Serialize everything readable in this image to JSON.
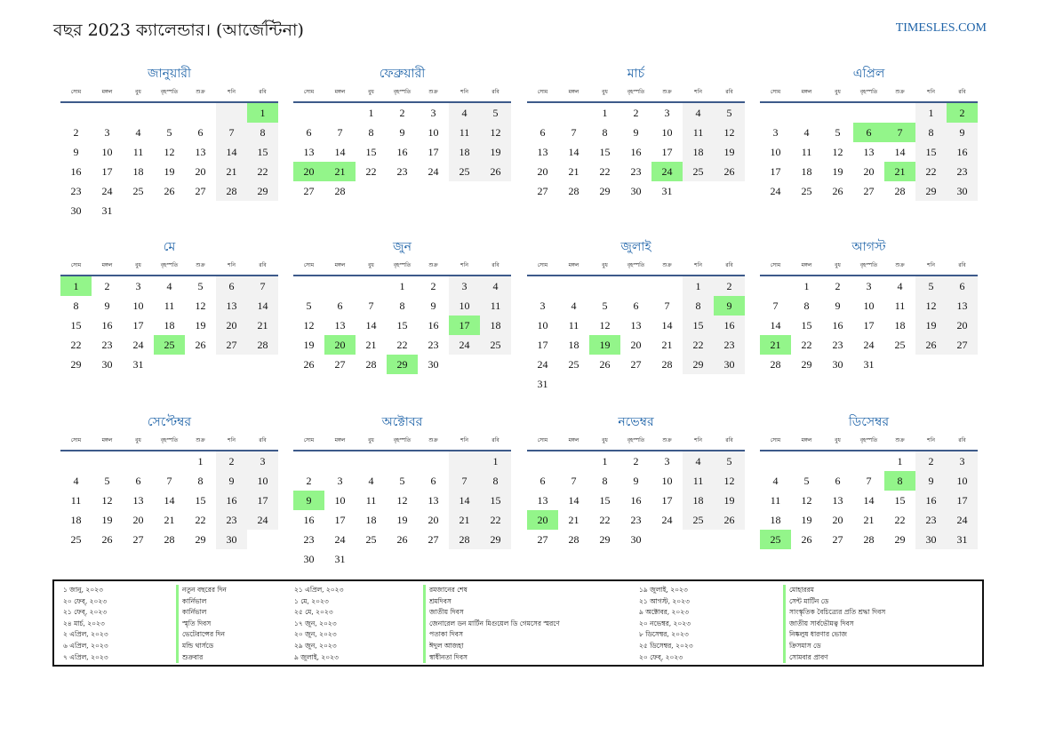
{
  "title": "বছর 2023 ক্যালেন্ডার। (আর্জেন্টিনা)",
  "site": "TIMESLES.COM",
  "weekdays": [
    "সোম",
    "মঙ্গল",
    "বুধ",
    "বৃহস্পতি",
    "শুক্র",
    "শনি",
    "রবি"
  ],
  "months": [
    {
      "name": "জানুয়ারী",
      "offset": 6,
      "days": 31,
      "holidays": [
        1
      ]
    },
    {
      "name": "ফেব্রুয়ারী",
      "offset": 2,
      "days": 28,
      "holidays": [
        20,
        21
      ]
    },
    {
      "name": "মার্চ",
      "offset": 2,
      "days": 31,
      "holidays": [
        24
      ]
    },
    {
      "name": "এপ্রিল",
      "offset": 5,
      "days": 30,
      "holidays": [
        2,
        6,
        7,
        21
      ]
    },
    {
      "name": "মে",
      "offset": 0,
      "days": 31,
      "holidays": [
        1,
        25
      ]
    },
    {
      "name": "জুন",
      "offset": 3,
      "days": 30,
      "holidays": [
        17,
        20,
        29
      ]
    },
    {
      "name": "জুলাই",
      "offset": 5,
      "days": 31,
      "holidays": [
        9,
        19
      ]
    },
    {
      "name": "আগস্ট",
      "offset": 1,
      "days": 31,
      "holidays": [
        21
      ]
    },
    {
      "name": "সেপ্টেম্বর",
      "offset": 4,
      "days": 30,
      "holidays": []
    },
    {
      "name": "অক্টোবর",
      "offset": 6,
      "days": 31,
      "holidays": [
        9
      ]
    },
    {
      "name": "নভেম্বর",
      "offset": 2,
      "days": 30,
      "holidays": [
        20
      ]
    },
    {
      "name": "ডিসেম্বর",
      "offset": 4,
      "days": 31,
      "holidays": [
        8,
        25
      ]
    }
  ],
  "legend": [
    [
      {
        "date": "১ জানু, ২০২৩",
        "name": "নতুন বছরের দিন"
      },
      {
        "date": "২০ ফেব্, ২০২৩",
        "name": "কার্নিভাল"
      },
      {
        "date": "২১ ফেব্, ২০২৩",
        "name": "কার্নিভাল"
      },
      {
        "date": "২৪ মার্চ, ২০২৩",
        "name": "স্মৃতি দিবস"
      },
      {
        "date": "২ এপ্রিল, ২০২৩",
        "name": "ভেটেরান্সের দিন"
      },
      {
        "date": "৬ এপ্রিল, ২০২৩",
        "name": "মন্ডি থার্সডে"
      },
      {
        "date": "৭ এপ্রিল, ২০২৩",
        "name": "শুক্রবার"
      }
    ],
    [
      {
        "date": "২১ এপ্রিল, ২০২৩",
        "name": "রমজানের শেষ"
      },
      {
        "date": "১ মে, ২০২৩",
        "name": "শ্রমদিবস"
      },
      {
        "date": "২৫ মে, ২০২৩",
        "name": "জাতীয় দিবস"
      },
      {
        "date": "১৭ জুন, ২০২৩",
        "name": "জেনারেল ডন মার্টিন মিগুয়েল ডি গেমসের স্মরণে"
      },
      {
        "date": "২০ জুন, ২০২৩",
        "name": "পতাকা দিবস"
      },
      {
        "date": "২৯ জুন, ২০২৩",
        "name": "ঈদুল আজহা"
      },
      {
        "date": "৯ জুলাই, ২০২৩",
        "name": "স্বাধীনতা দিবস"
      }
    ],
    [
      {
        "date": "১৯ জুলাই, ২০২৩",
        "name": "মোহাররম"
      },
      {
        "date": "২১ আগস্ট, ২০২৩",
        "name": "সেন্ট মার্টিন ডে"
      },
      {
        "date": "৯ অক্টোবর, ২০২৩",
        "name": "সাংস্কৃতিক বৈচিত্র্যের প্রতি শ্রদ্ধা দিবস"
      },
      {
        "date": "২০ নভেম্বর, ২০২৩",
        "name": "জাতীয় সার্বভৌমত্ব দিবস"
      },
      {
        "date": "৮ ডিসেম্বর, ২০২৩",
        "name": "নিষ্কলুষ ধারণার ভোজ"
      },
      {
        "date": "২৫ ডিসেম্বর, ২০২৩",
        "name": "ক্রিসমাস ডে"
      },
      {
        "date": "২০ ফেব্, ২০২৩",
        "name": "সোমবার প্রাবণ"
      }
    ]
  ],
  "colors": {
    "accent": "#1e63a8",
    "holiday": "#93f58a",
    "weekend": "#f2f2f2"
  }
}
